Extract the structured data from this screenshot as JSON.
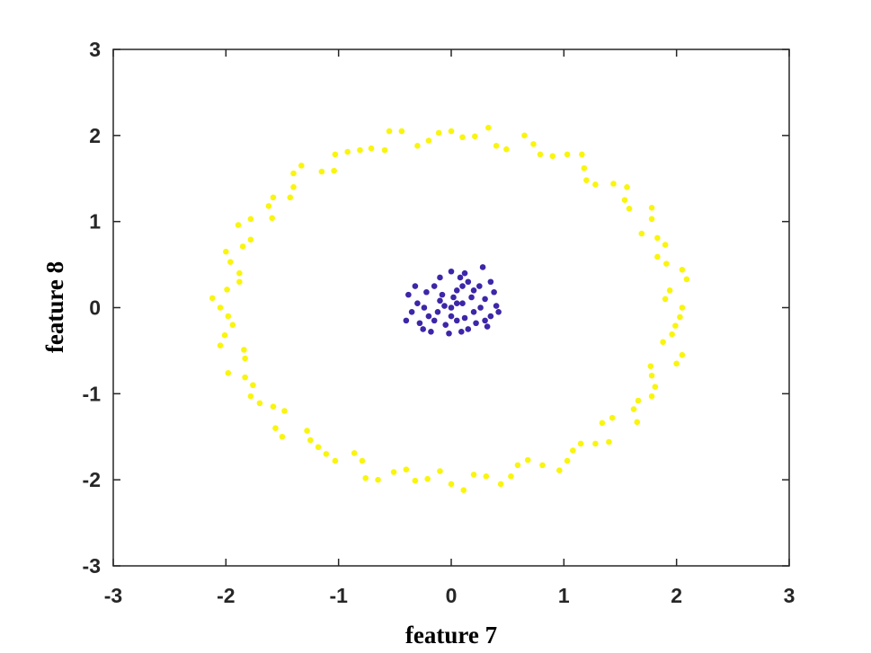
{
  "chart_data": {
    "type": "scatter",
    "x_label": "feature 7",
    "y_label": "feature 8",
    "xlim": [
      -3,
      3
    ],
    "ylim": [
      -3,
      3
    ],
    "xticks": [
      -3,
      -2,
      -1,
      0,
      1,
      2,
      3
    ],
    "yticks": [
      -3,
      -2,
      -1,
      0,
      1,
      2,
      3
    ],
    "box": true,
    "series": [
      {
        "color": "#f9f50e",
        "x": [
          2.05,
          1.94,
          2.05,
          1.83,
          1.83,
          1.78,
          1.58,
          1.56,
          1.28,
          1.18,
          1.03,
          0.79,
          0.65,
          0.4,
          0.21,
          0.0,
          -0.2,
          -0.44,
          -0.59,
          -0.81,
          -1.03,
          -1.15,
          -1.4,
          -1.43,
          -1.62,
          -1.78,
          -1.78,
          -2.0,
          -1.88,
          -1.99,
          -2.05,
          -1.94,
          -2.05,
          -1.83,
          -1.83,
          -1.78,
          -1.58,
          -1.56,
          -1.28,
          -1.18,
          -1.03,
          -0.79,
          -0.65,
          -0.4,
          -0.21,
          0.0,
          0.2,
          0.44,
          0.59,
          0.81,
          1.03,
          1.15,
          1.4,
          1.43,
          1.62,
          1.78,
          1.78,
          2.0,
          1.88,
          1.99,
          1.9,
          2.09,
          1.91,
          1.9,
          1.69,
          1.78,
          1.54,
          1.44,
          1.2,
          1.16,
          0.9,
          0.73,
          0.49,
          0.33,
          0.1,
          -0.11,
          -0.3,
          -0.55,
          -0.71,
          -0.92,
          -1.04,
          -1.33,
          -1.4,
          -1.58,
          -1.59,
          -1.89,
          -1.85,
          -1.96,
          -1.88,
          -2.12,
          -1.98,
          -2.01,
          -1.84,
          -1.98,
          -1.76,
          -1.7,
          -1.48,
          -1.5,
          -1.25,
          -1.11,
          -0.86,
          -0.76,
          -0.51,
          -0.32,
          -0.1,
          0.11,
          0.31,
          0.53,
          0.68,
          0.96,
          1.08,
          1.28,
          1.34,
          1.65,
          1.66,
          1.81,
          1.77,
          2.05,
          1.96,
          2.03
        ],
        "y": [
          0.0,
          0.2,
          0.44,
          0.59,
          0.81,
          1.03,
          1.15,
          1.4,
          1.43,
          1.62,
          1.78,
          1.78,
          2.0,
          1.88,
          1.99,
          2.05,
          1.94,
          2.05,
          1.83,
          1.83,
          1.78,
          1.58,
          1.56,
          1.28,
          1.18,
          1.03,
          0.79,
          0.65,
          0.4,
          0.21,
          0.0,
          -0.2,
          -0.44,
          -0.59,
          -0.81,
          -1.03,
          -1.15,
          -1.4,
          -1.43,
          -1.62,
          -1.78,
          -1.78,
          -2.0,
          -1.88,
          -1.99,
          -2.05,
          -1.94,
          -2.05,
          -1.83,
          -1.83,
          -1.78,
          -1.58,
          -1.56,
          -1.28,
          -1.18,
          -1.03,
          -0.79,
          -0.65,
          -0.4,
          -0.21,
          0.1,
          0.33,
          0.51,
          0.73,
          0.86,
          1.16,
          1.25,
          1.44,
          1.48,
          1.78,
          1.76,
          1.9,
          1.84,
          2.09,
          1.98,
          2.03,
          1.88,
          2.05,
          1.85,
          1.81,
          1.59,
          1.65,
          1.4,
          1.28,
          1.04,
          0.96,
          0.71,
          0.53,
          0.3,
          0.11,
          -0.1,
          -0.32,
          -0.49,
          -0.76,
          -0.9,
          -1.11,
          -1.2,
          -1.5,
          -1.54,
          -1.7,
          -1.69,
          -1.98,
          -1.91,
          -2.01,
          -1.9,
          -2.12,
          -1.96,
          -1.96,
          -1.77,
          -1.89,
          -1.66,
          -1.58,
          -1.34,
          -1.33,
          -1.08,
          -0.92,
          -0.68,
          -0.55,
          -0.31,
          -0.11
        ]
      },
      {
        "color": "#3e26a8",
        "x": [
          0.0,
          0.1,
          -0.1,
          0.2,
          -0.2,
          0.05,
          -0.05,
          0.3,
          -0.3,
          0.15,
          -0.15,
          0.25,
          -0.25,
          0.35,
          -0.35,
          0.08,
          -0.02,
          0.4,
          -0.38,
          0.28,
          0.18,
          -0.12,
          0.02,
          0.12,
          -0.22,
          0.22,
          0.32,
          -0.28,
          0.0,
          0.05,
          -0.08,
          0.38,
          -0.32,
          0.15,
          -0.18,
          0.26,
          -0.06,
          0.09,
          -0.24,
          0.2,
          0.42,
          -0.1,
          0.3,
          -0.4,
          0.12,
          0.05,
          -0.15,
          0.35,
          0.0,
          0.1
        ],
        "y": [
          0.0,
          0.05,
          0.08,
          -0.05,
          -0.1,
          0.2,
          -0.2,
          0.1,
          0.05,
          -0.25,
          0.25,
          0.25,
          -0.25,
          -0.1,
          -0.05,
          0.35,
          -0.3,
          0.02,
          0.15,
          0.47,
          0.12,
          -0.05,
          0.12,
          -0.12,
          0.18,
          -0.18,
          -0.22,
          -0.18,
          0.42,
          -0.15,
          0.15,
          0.18,
          0.25,
          0.3,
          -0.28,
          0.0,
          0.02,
          -0.28,
          0.0,
          0.2,
          -0.05,
          0.35,
          -0.15,
          -0.15,
          0.4,
          0.05,
          -0.15,
          0.3,
          -0.1,
          0.25
        ]
      }
    ]
  }
}
